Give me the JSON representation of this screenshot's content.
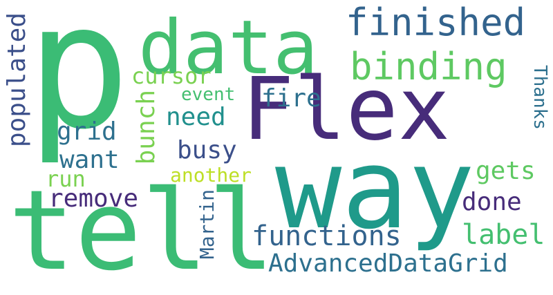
{
  "palette": {
    "dark_purple": "#472c7a",
    "indigo": "#3b4f8a",
    "slate_blue": "#33638d",
    "teal": "#2d708e",
    "green_teal": "#1f9a8a",
    "aqua": "#21908d",
    "green": "#3bbc75",
    "mid_green": "#44bf70",
    "light_green": "#5ec962",
    "yellow_green": "#7ad151",
    "lime": "#bddf26",
    "background": "#ffffff"
  },
  "words": [
    {
      "key": "p",
      "text": "p"
    },
    {
      "key": "data",
      "text": "data"
    },
    {
      "key": "finished",
      "text": "finished"
    },
    {
      "key": "binding",
      "text": "binding"
    },
    {
      "key": "flex",
      "text": "Flex"
    },
    {
      "key": "way",
      "text": "way"
    },
    {
      "key": "tell",
      "text": "tell"
    },
    {
      "key": "cursor",
      "text": "cursor"
    },
    {
      "key": "event",
      "text": "event"
    },
    {
      "key": "fire",
      "text": "fire"
    },
    {
      "key": "need",
      "text": "need"
    },
    {
      "key": "grid",
      "text": "grid"
    },
    {
      "key": "busy",
      "text": "busy"
    },
    {
      "key": "want",
      "text": "want"
    },
    {
      "key": "run",
      "text": "run"
    },
    {
      "key": "another",
      "text": "another"
    },
    {
      "key": "remove",
      "text": "remove"
    },
    {
      "key": "gets",
      "text": "gets"
    },
    {
      "key": "done",
      "text": "done"
    },
    {
      "key": "functions",
      "text": "functions"
    },
    {
      "key": "label",
      "text": "label"
    },
    {
      "key": "advanceddatagrid",
      "text": "AdvancedDataGrid"
    },
    {
      "key": "populated",
      "text": "populated"
    },
    {
      "key": "bunch",
      "text": "bunch"
    },
    {
      "key": "martin",
      "text": "Martin"
    },
    {
      "key": "thanks",
      "text": "Thanks"
    }
  ]
}
